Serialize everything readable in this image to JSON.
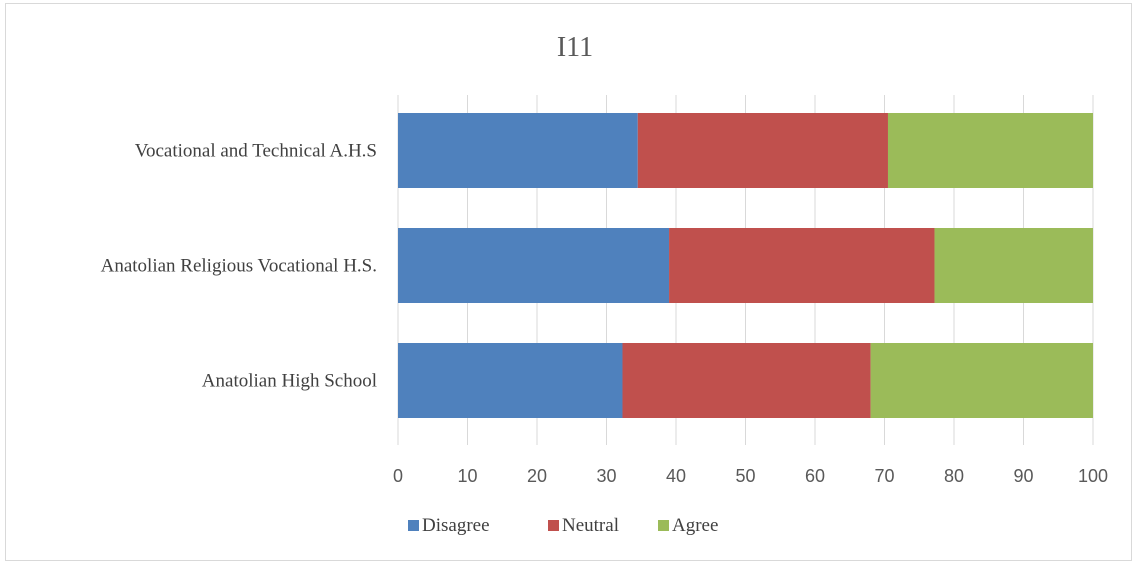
{
  "chart_data": {
    "type": "bar",
    "orientation": "horizontal",
    "stacked": true,
    "title": "I11",
    "categories": [
      "Vocational and Technical A.H.S",
      "Anatolian Religious Vocational H.S.",
      "Anatolian High School"
    ],
    "series": [
      {
        "name": "Disagree",
        "values": [
          34.5,
          39.0,
          32.3
        ],
        "color": "#4f81bd"
      },
      {
        "name": "Neutral",
        "values": [
          36.0,
          38.2,
          35.7
        ],
        "color": "#c0504d"
      },
      {
        "name": "Agree",
        "values": [
          29.5,
          22.8,
          32.0
        ],
        "color": "#9bbb59"
      }
    ],
    "xlim": [
      0,
      100
    ],
    "xticks": [
      0,
      10,
      20,
      30,
      40,
      50,
      60,
      70,
      80,
      90,
      100
    ],
    "grid": true,
    "legend_position": "bottom"
  }
}
